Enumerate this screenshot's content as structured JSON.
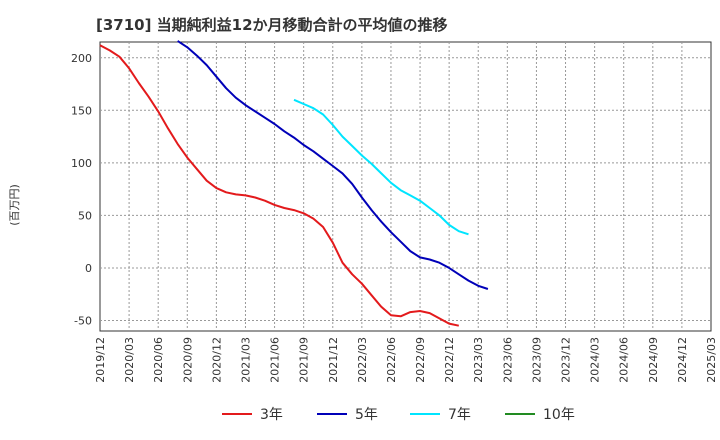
{
  "chart_data": {
    "type": "line",
    "title": "[3710]  当期純利益12か月移動合計の平均値の推移",
    "ylabel": "(百万円)",
    "xlabel": "",
    "ylim": [
      -60,
      215
    ],
    "yticks": [
      200,
      150,
      100,
      50,
      0,
      -50
    ],
    "xtick_labels": [
      "2019/12",
      "2020/03",
      "2020/06",
      "2020/09",
      "2020/12",
      "2021/03",
      "2021/06",
      "2021/09",
      "2021/12",
      "2022/03",
      "2022/06",
      "2022/09",
      "2022/12",
      "2023/03",
      "2023/06",
      "2023/09",
      "2023/12",
      "2024/03",
      "2024/06",
      "2024/09",
      "2024/12",
      "2025/03"
    ],
    "grid": true,
    "legend_position": "bottom",
    "series": [
      {
        "name": "3年",
        "color": "#e31a1c",
        "start_index": 0,
        "values": [
          212,
          207,
          201,
          190,
          176,
          163,
          149,
          133,
          118,
          105,
          94,
          83,
          76,
          72,
          70,
          69,
          67,
          64,
          60,
          57,
          55,
          52,
          47,
          39,
          24,
          5,
          -6,
          -15,
          -26,
          -37,
          -45,
          -46,
          -42,
          -41,
          -43,
          -48,
          -53,
          -55
        ]
      },
      {
        "name": "5年",
        "color": "#0000b8",
        "start_index": 8,
        "values": [
          216,
          210,
          202,
          193,
          182,
          171,
          162,
          155,
          149,
          143,
          137,
          130,
          124,
          117,
          111,
          104,
          97,
          90,
          80,
          67,
          55,
          44,
          34,
          25,
          16,
          10,
          8,
          5,
          0,
          -6,
          -12,
          -17,
          -20
        ]
      },
      {
        "name": "7年",
        "color": "#00e5ff",
        "start_index": 20,
        "values": [
          160,
          156,
          152,
          146,
          136,
          125,
          116,
          107,
          99,
          90,
          81,
          74,
          69,
          64,
          57,
          50,
          41,
          35,
          32
        ]
      },
      {
        "name": "10年",
        "color": "#228b22",
        "start_index": 0,
        "values": []
      }
    ]
  }
}
